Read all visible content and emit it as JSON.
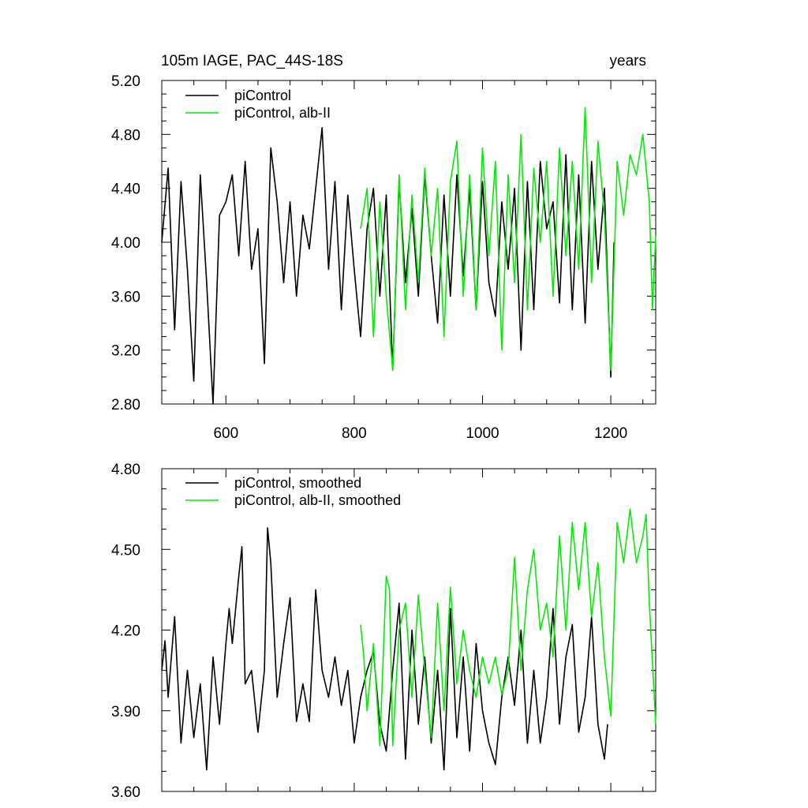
{
  "colors": {
    "picontrol": "#000000",
    "alb": "#00ee00"
  },
  "panel_top": {
    "title_left": "105m IAGE, PAC_44S-18S",
    "title_right": "years",
    "y_tick_labels": [
      "5.20",
      "4.80",
      "4.40",
      "4.00",
      "3.60",
      "3.20",
      "2.80"
    ],
    "x_tick_labels": [
      "600",
      "800",
      "1000",
      "1200"
    ],
    "legend": [
      "piControl",
      "piControl, alb-II"
    ]
  },
  "panel_bottom": {
    "y_tick_labels": [
      "4.80",
      "4.50",
      "4.20",
      "3.90",
      "3.60"
    ],
    "legend": [
      "piControl, smoothed",
      "piControl, alb-II, smoothed"
    ]
  },
  "chart_data": [
    {
      "type": "line",
      "title": "105m IAGE, PAC_44S-18S",
      "title_right": "years",
      "xlim": [
        500,
        1270
      ],
      "ylim": [
        2.8,
        5.2
      ],
      "x_ticks": [
        600,
        800,
        1000,
        1200
      ],
      "y_ticks": [
        2.8,
        3.2,
        3.6,
        4.0,
        4.4,
        4.8,
        5.2
      ],
      "legend_position": "top-left",
      "series": [
        {
          "name": "piControl",
          "color": "#000000",
          "x": [
            500,
            510,
            520,
            530,
            540,
            550,
            560,
            570,
            580,
            590,
            600,
            610,
            620,
            630,
            640,
            650,
            660,
            670,
            680,
            690,
            700,
            710,
            720,
            730,
            740,
            750,
            760,
            770,
            780,
            790,
            800,
            810,
            820,
            830,
            840,
            850,
            860,
            870,
            880,
            890,
            900,
            910,
            920,
            930,
            940,
            950,
            960,
            970,
            980,
            990,
            1000,
            1010,
            1020,
            1030,
            1040,
            1050,
            1060,
            1070,
            1080,
            1090,
            1100,
            1110,
            1120,
            1130,
            1140,
            1150,
            1160,
            1170,
            1180,
            1190,
            1200,
            1205
          ],
          "y": [
            4.0,
            4.55,
            3.35,
            4.45,
            3.8,
            2.97,
            4.5,
            3.7,
            2.8,
            4.2,
            4.3,
            4.5,
            3.9,
            4.6,
            3.8,
            4.1,
            3.1,
            4.7,
            4.3,
            3.7,
            4.3,
            3.6,
            4.2,
            3.95,
            4.4,
            4.85,
            3.8,
            4.45,
            3.5,
            4.35,
            3.8,
            3.3,
            4.1,
            4.4,
            3.6,
            4.35,
            3.05,
            4.45,
            3.7,
            4.25,
            3.6,
            4.5,
            3.9,
            3.4,
            4.35,
            3.6,
            4.5,
            3.75,
            4.4,
            3.5,
            4.45,
            3.7,
            3.45,
            4.3,
            3.8,
            4.4,
            3.2,
            4.45,
            3.5,
            4.6,
            4.1,
            4.3,
            3.55,
            4.65,
            3.5,
            4.5,
            3.4,
            4.6,
            3.8,
            4.4,
            3.0,
            4.0
          ]
        },
        {
          "name": "piControl, alb-II",
          "color": "#00ee00",
          "x": [
            810,
            820,
            830,
            840,
            850,
            860,
            870,
            880,
            890,
            900,
            910,
            920,
            930,
            940,
            950,
            960,
            970,
            980,
            990,
            1000,
            1010,
            1020,
            1030,
            1040,
            1050,
            1060,
            1070,
            1080,
            1090,
            1100,
            1110,
            1120,
            1130,
            1140,
            1150,
            1160,
            1170,
            1180,
            1190,
            1200,
            1210,
            1220,
            1230,
            1240,
            1250,
            1260,
            1265,
            1270
          ],
          "y": [
            4.1,
            4.4,
            3.3,
            4.3,
            3.6,
            3.05,
            4.5,
            3.5,
            4.35,
            3.7,
            4.55,
            3.9,
            4.4,
            3.3,
            4.45,
            4.75,
            3.6,
            4.5,
            3.5,
            4.7,
            3.9,
            4.6,
            3.2,
            4.5,
            3.7,
            4.8,
            3.5,
            4.55,
            4.0,
            4.6,
            3.6,
            4.7,
            3.9,
            4.6,
            3.8,
            5.0,
            3.7,
            4.75,
            4.2,
            3.05,
            4.6,
            4.2,
            4.65,
            4.5,
            4.8,
            4.3,
            3.5,
            4.05
          ]
        }
      ]
    },
    {
      "type": "line",
      "xlim": [
        500,
        1270
      ],
      "ylim": [
        3.6,
        4.8
      ],
      "x_ticks": [
        600,
        800,
        1000,
        1200
      ],
      "y_ticks": [
        3.6,
        3.9,
        4.2,
        4.5,
        4.8
      ],
      "legend_position": "top-left",
      "series": [
        {
          "name": "piControl, smoothed",
          "color": "#000000",
          "x": [
            500,
            505,
            510,
            520,
            530,
            540,
            550,
            560,
            570,
            580,
            590,
            600,
            605,
            610,
            620,
            625,
            630,
            640,
            650,
            660,
            665,
            670,
            680,
            690,
            700,
            710,
            720,
            730,
            740,
            750,
            760,
            770,
            780,
            790,
            800,
            810,
            820,
            830,
            840,
            850,
            860,
            870,
            880,
            890,
            900,
            910,
            920,
            930,
            940,
            950,
            960,
            970,
            980,
            990,
            1000,
            1010,
            1020,
            1030,
            1040,
            1050,
            1060,
            1070,
            1080,
            1090,
            1100,
            1110,
            1120,
            1130,
            1140,
            1150,
            1160,
            1170,
            1180,
            1190,
            1195
          ],
          "y": [
            4.05,
            4.16,
            3.95,
            4.25,
            3.78,
            4.05,
            3.8,
            4.0,
            3.68,
            4.1,
            3.85,
            4.15,
            4.28,
            4.15,
            4.4,
            4.51,
            4.0,
            4.05,
            3.82,
            4.05,
            4.58,
            4.45,
            3.95,
            4.15,
            4.32,
            3.86,
            4.0,
            3.86,
            4.35,
            4.05,
            3.95,
            4.1,
            3.92,
            4.05,
            3.78,
            3.95,
            4.05,
            4.12,
            3.85,
            3.75,
            4.05,
            4.3,
            3.72,
            4.2,
            3.85,
            4.1,
            3.78,
            4.05,
            3.68,
            4.28,
            3.8,
            4.1,
            3.75,
            4.15,
            3.9,
            3.78,
            3.7,
            3.95,
            4.1,
            3.92,
            4.2,
            3.78,
            4.05,
            3.78,
            3.95,
            4.28,
            3.85,
            4.1,
            4.22,
            3.82,
            3.95,
            4.25,
            3.85,
            3.72,
            3.85
          ]
        },
        {
          "name": "piControl, alb-II, smoothed",
          "color": "#00ee00",
          "x": [
            810,
            815,
            820,
            830,
            840,
            850,
            855,
            860,
            870,
            880,
            890,
            900,
            910,
            920,
            930,
            940,
            950,
            960,
            970,
            980,
            990,
            1000,
            1010,
            1020,
            1030,
            1040,
            1050,
            1060,
            1070,
            1080,
            1090,
            1100,
            1110,
            1120,
            1130,
            1140,
            1150,
            1160,
            1170,
            1180,
            1190,
            1200,
            1210,
            1220,
            1230,
            1240,
            1250,
            1255,
            1260,
            1270
          ],
          "y": [
            4.22,
            4.1,
            3.9,
            4.15,
            3.77,
            4.4,
            4.35,
            3.77,
            4.2,
            4.3,
            3.95,
            4.33,
            4.05,
            3.8,
            4.3,
            3.9,
            4.36,
            4.0,
            4.2,
            4.05,
            3.95,
            4.1,
            4.0,
            4.1,
            3.96,
            4.05,
            4.47,
            4.05,
            4.35,
            4.5,
            4.2,
            4.3,
            4.1,
            4.55,
            4.2,
            4.6,
            4.35,
            4.6,
            4.25,
            4.45,
            4.1,
            3.88,
            4.6,
            4.45,
            4.65,
            4.45,
            4.55,
            4.63,
            4.3,
            3.85
          ]
        }
      ]
    }
  ]
}
